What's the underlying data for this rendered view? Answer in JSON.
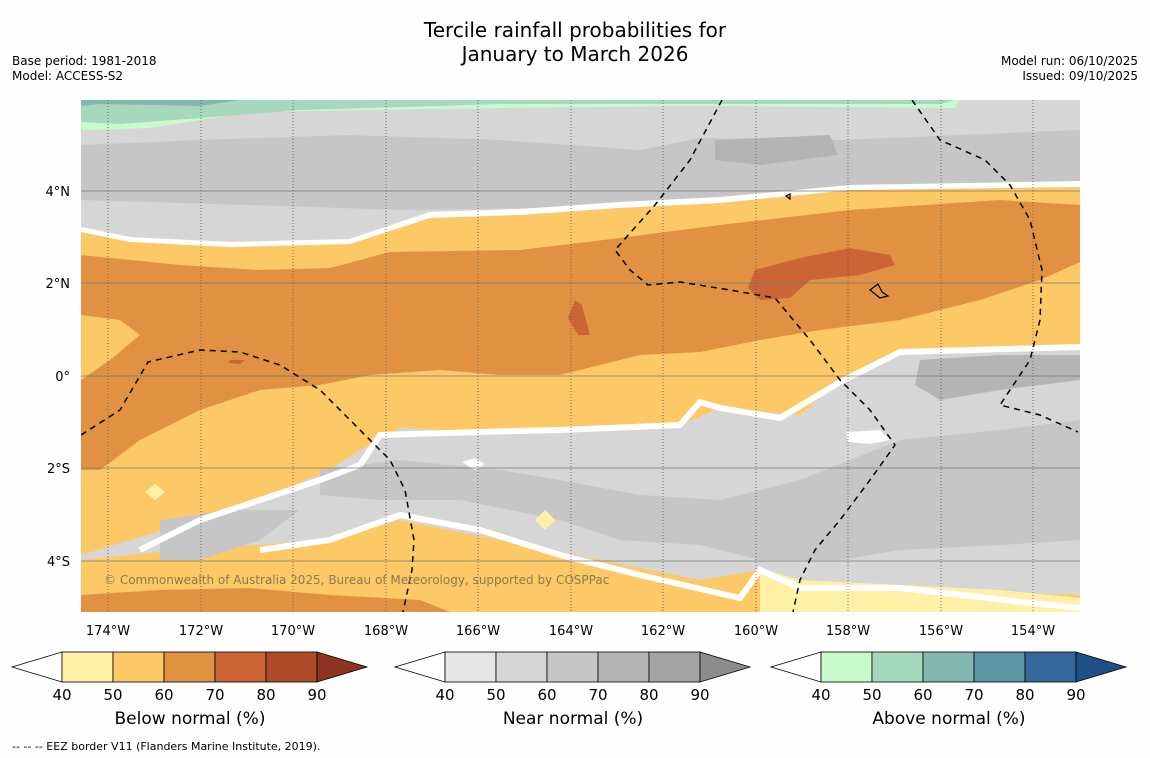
{
  "title": {
    "line1": "Tercile rainfall probabilities for",
    "line2": "January to March 2026"
  },
  "meta": {
    "base_period": "Base period: 1981-2018",
    "model": "Model: ACCESS-S2",
    "model_run": "Model run: 06/10/2025",
    "issued": "Issued: 09/10/2025"
  },
  "map": {
    "lon_labels": [
      "174°W",
      "172°W",
      "170°W",
      "168°W",
      "166°W",
      "164°W",
      "162°W",
      "160°W",
      "158°W",
      "156°W",
      "154°W"
    ],
    "lat_labels": [
      "4°N",
      "2°N",
      "0°",
      "2°S",
      "4°S"
    ],
    "copyright": "© Commonwealth of Australia 2025, Bureau of Meteorology, supported by COSPPac"
  },
  "colorbars": [
    {
      "name": "below",
      "label": "Below normal (%)",
      "ticks": [
        "40",
        "50",
        "60",
        "70",
        "80",
        "90"
      ],
      "colors": [
        "#fff0a8",
        "#fdc966",
        "#e09242",
        "#cc6535",
        "#ad4a2a",
        "#8f3320"
      ]
    },
    {
      "name": "near",
      "label": "Near normal (%)",
      "ticks": [
        "40",
        "50",
        "60",
        "70",
        "80",
        "90"
      ],
      "colors": [
        "#e6e6e6",
        "#d6d6d6",
        "#c6c6c6",
        "#b4b4b4",
        "#a3a3a3",
        "#8c8c8c"
      ]
    },
    {
      "name": "above",
      "label": "Above normal (%)",
      "ticks": [
        "40",
        "50",
        "60",
        "70",
        "80",
        "90"
      ],
      "colors": [
        "#c8fbcc",
        "#a5d8bd",
        "#82b8ae",
        "#5c94a3",
        "#34689a",
        "#1e4f85"
      ]
    }
  ],
  "footer": "-- -- -- EEZ border V11 (Flanders Marine Institute, 2019)."
}
